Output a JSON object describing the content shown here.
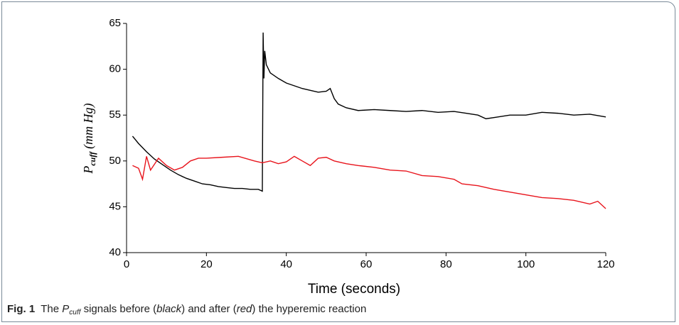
{
  "chart_data": {
    "type": "line",
    "y_label": {
      "symbol": "P",
      "subscript": "cuff",
      "unit": "(mm Hg)"
    },
    "x_label": "Time (seconds)",
    "xlim": [
      0,
      120
    ],
    "xticks": [
      0,
      20,
      40,
      60,
      80,
      100,
      120
    ],
    "ylim": [
      40,
      65
    ],
    "yticks": [
      40,
      45,
      50,
      55,
      60,
      65
    ],
    "series": [
      {
        "name": "black",
        "color": "#000000",
        "x": [
          1.5,
          3,
          5,
          7,
          9,
          11,
          13,
          15,
          17,
          19,
          21,
          23,
          25,
          27,
          29,
          31,
          33,
          34,
          34.2,
          34.4,
          34.6,
          35,
          36,
          38,
          40,
          42,
          44,
          46,
          48,
          50,
          51,
          52,
          53,
          55,
          58,
          62,
          66,
          70,
          74,
          78,
          82,
          85,
          88,
          90,
          93,
          96,
          100,
          104,
          108,
          112,
          116,
          120
        ],
        "values": [
          52.7,
          51.9,
          51.0,
          50.2,
          49.6,
          49.0,
          48.5,
          48.1,
          47.8,
          47.5,
          47.4,
          47.2,
          47.1,
          47.0,
          47.0,
          46.9,
          46.9,
          46.7,
          64.0,
          59.0,
          62.0,
          60.5,
          59.6,
          59.0,
          58.5,
          58.2,
          57.9,
          57.7,
          57.5,
          57.6,
          57.9,
          56.8,
          56.2,
          55.8,
          55.5,
          55.6,
          55.5,
          55.4,
          55.5,
          55.3,
          55.4,
          55.2,
          55.0,
          54.6,
          54.8,
          55.0,
          55.0,
          55.3,
          55.2,
          55.0,
          55.1,
          54.8
        ]
      },
      {
        "name": "red",
        "color": "#e8141c",
        "x": [
          1.5,
          3,
          4,
          5,
          6,
          8,
          10,
          12,
          14,
          16,
          18,
          20,
          24,
          28,
          32,
          34,
          36,
          38,
          40,
          42,
          44,
          46,
          48,
          50,
          52,
          55,
          58,
          62,
          66,
          70,
          74,
          78,
          82,
          84,
          88,
          92,
          96,
          100,
          104,
          108,
          112,
          116,
          118,
          120
        ],
        "values": [
          49.5,
          49.2,
          48.0,
          50.5,
          49.0,
          50.3,
          49.5,
          49.0,
          49.3,
          50.0,
          50.3,
          50.3,
          50.4,
          50.5,
          50.0,
          49.8,
          50.0,
          49.7,
          49.9,
          50.5,
          50.0,
          49.5,
          50.3,
          50.4,
          50.0,
          49.7,
          49.5,
          49.3,
          49.0,
          48.9,
          48.4,
          48.3,
          48.0,
          47.5,
          47.3,
          46.9,
          46.6,
          46.3,
          46.0,
          45.9,
          45.7,
          45.3,
          45.6,
          44.8
        ]
      }
    ]
  },
  "caption": {
    "label": "Fig. 1",
    "parts": [
      "The ",
      "P",
      "cuff",
      " signals before (",
      "black",
      ") and after (",
      "red",
      ") the hyperemic reaction"
    ]
  }
}
